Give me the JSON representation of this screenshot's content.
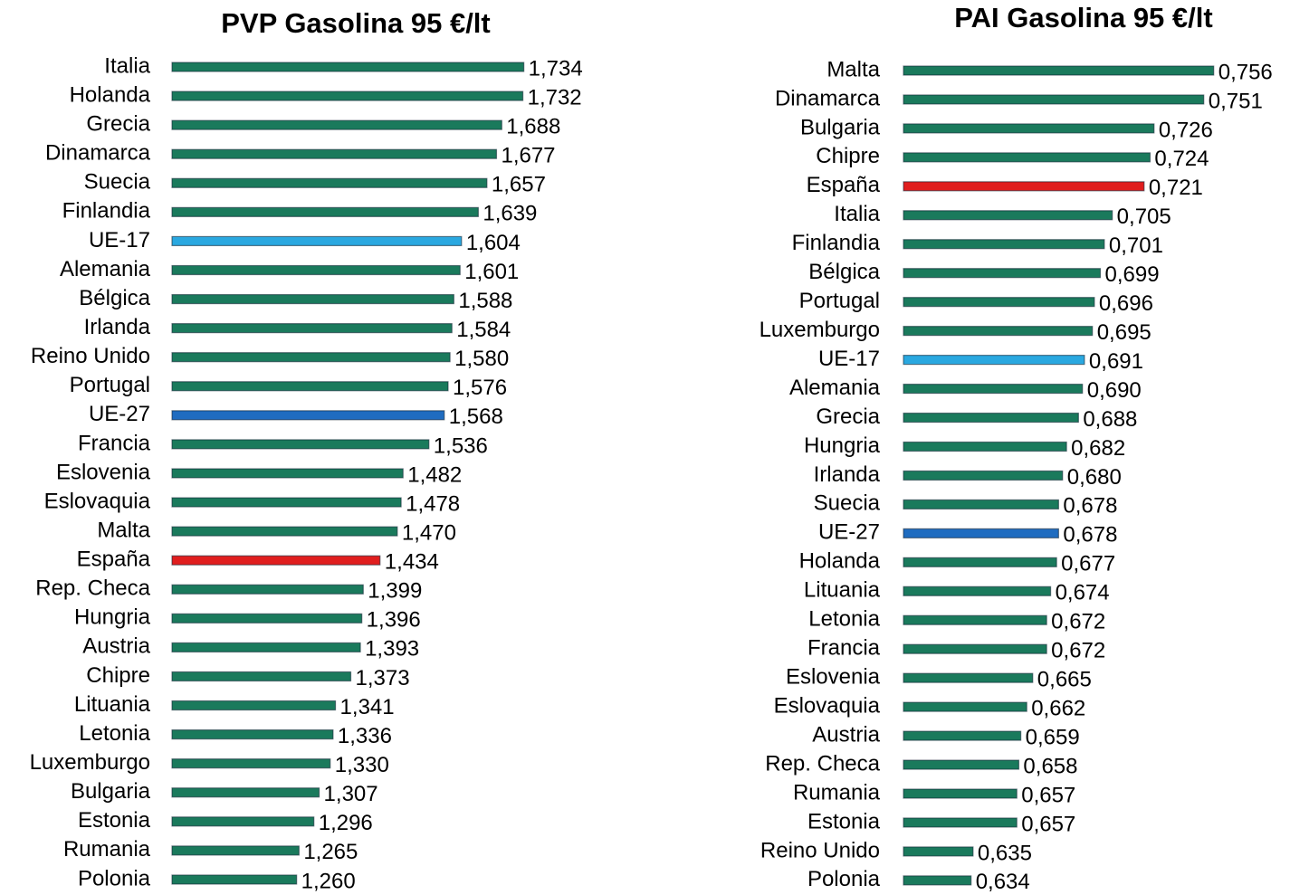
{
  "chart_data": [
    {
      "type": "bar",
      "orientation": "horizontal",
      "title": "PVP Gasolina 95 €/lt",
      "categories": [
        "Italia",
        "Holanda",
        "Grecia",
        "Dinamarca",
        "Suecia",
        "Finlandia",
        "UE-17",
        "Alemania",
        "Bélgica",
        "Irlanda",
        "Reino Unido",
        "Portugal",
        "UE-27",
        "Francia",
        "Eslovenia",
        "Eslovaquia",
        "Malta",
        "España",
        "Rep. Checa",
        "Hungria",
        "Austria",
        "Chipre",
        "Lituania",
        "Letonia",
        "Luxemburgo",
        "Bulgaria",
        "Estonia",
        "Rumania",
        "Polonia"
      ],
      "values": [
        1.734,
        1.732,
        1.688,
        1.677,
        1.657,
        1.639,
        1.604,
        1.601,
        1.588,
        1.584,
        1.58,
        1.576,
        1.568,
        1.536,
        1.482,
        1.478,
        1.47,
        1.434,
        1.399,
        1.396,
        1.393,
        1.373,
        1.341,
        1.336,
        1.33,
        1.307,
        1.296,
        1.265,
        1.26
      ],
      "value_labels": [
        "1,734",
        "1,732",
        "1,688",
        "1,677",
        "1,657",
        "1,639",
        "1,604",
        "1,601",
        "1,588",
        "1,584",
        "1,580",
        "1,576",
        "1,568",
        "1,536",
        "1,482",
        "1,478",
        "1,470",
        "1,434",
        "1,399",
        "1,396",
        "1,393",
        "1,373",
        "1,341",
        "1,336",
        "1,330",
        "1,307",
        "1,296",
        "1,265",
        "1,260"
      ],
      "colors": [
        "#1a7a5c",
        "#1a7a5c",
        "#1a7a5c",
        "#1a7a5c",
        "#1a7a5c",
        "#1a7a5c",
        "#2aa8e0",
        "#1a7a5c",
        "#1a7a5c",
        "#1a7a5c",
        "#1a7a5c",
        "#1a7a5c",
        "#1f6cc0",
        "#1a7a5c",
        "#1a7a5c",
        "#1a7a5c",
        "#1a7a5c",
        "#e01e1e",
        "#1a7a5c",
        "#1a7a5c",
        "#1a7a5c",
        "#1a7a5c",
        "#1a7a5c",
        "#1a7a5c",
        "#1a7a5c",
        "#1a7a5c",
        "#1a7a5c",
        "#1a7a5c",
        "#1a7a5c"
      ],
      "xlim": [
        1.0,
        2.0
      ]
    },
    {
      "type": "bar",
      "orientation": "horizontal",
      "title": "PAI Gasolina 95 €/lt",
      "categories": [
        "Malta",
        "Dinamarca",
        "Bulgaria",
        "Chipre",
        "España",
        "Italia",
        "Finlandia",
        "Bélgica",
        "Portugal",
        "Luxemburgo",
        "UE-17",
        "Alemania",
        "Grecia",
        "Hungria",
        "Irlanda",
        "Suecia",
        "UE-27",
        "Holanda",
        "Lituania",
        "Letonia",
        "Francia",
        "Eslovenia",
        "Eslovaquia",
        "Austria",
        "Rep. Checa",
        "Rumania",
        "Estonia",
        "Reino Unido",
        "Polonia"
      ],
      "values": [
        0.756,
        0.751,
        0.726,
        0.724,
        0.721,
        0.705,
        0.701,
        0.699,
        0.696,
        0.695,
        0.691,
        0.69,
        0.688,
        0.682,
        0.68,
        0.678,
        0.678,
        0.677,
        0.674,
        0.672,
        0.672,
        0.665,
        0.662,
        0.659,
        0.658,
        0.657,
        0.657,
        0.635,
        0.634
      ],
      "value_labels": [
        "0,756",
        "0,751",
        "0,726",
        "0,724",
        "0,721",
        "0,705",
        "0,701",
        "0,699",
        "0,696",
        "0,695",
        "0,691",
        "0,690",
        "0,688",
        "0,682",
        "0,680",
        "0,678",
        "0,678",
        "0,677",
        "0,674",
        "0,672",
        "0,672",
        "0,665",
        "0,662",
        "0,659",
        "0,658",
        "0,657",
        "0,657",
        "0,635",
        "0,634"
      ],
      "colors": [
        "#1a7a5c",
        "#1a7a5c",
        "#1a7a5c",
        "#1a7a5c",
        "#e01e1e",
        "#1a7a5c",
        "#1a7a5c",
        "#1a7a5c",
        "#1a7a5c",
        "#1a7a5c",
        "#2aa8e0",
        "#1a7a5c",
        "#1a7a5c",
        "#1a7a5c",
        "#1a7a5c",
        "#1a7a5c",
        "#1f6cc0",
        "#1a7a5c",
        "#1a7a5c",
        "#1a7a5c",
        "#1a7a5c",
        "#1a7a5c",
        "#1a7a5c",
        "#1a7a5c",
        "#1a7a5c",
        "#1a7a5c",
        "#1a7a5c",
        "#1a7a5c",
        "#1a7a5c"
      ],
      "xlim": [
        0.6,
        0.8
      ]
    }
  ]
}
